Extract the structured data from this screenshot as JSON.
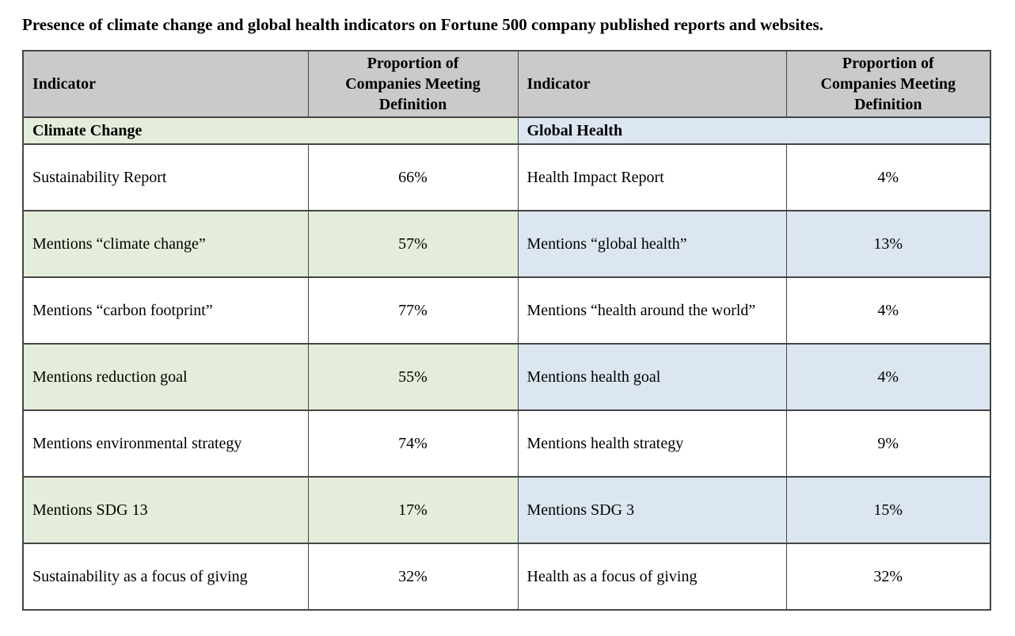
{
  "title": "Presence of climate change and global health indicators on Fortune 500 company published reports and websites.",
  "table": {
    "headers": {
      "indicator_left": "Indicator",
      "proportion_left": "Proportion of\nCompanies Meeting\nDefinition",
      "indicator_right": "Indicator",
      "proportion_right": "Proportion of\nCompanies Meeting\nDefinition"
    },
    "sections": {
      "left": {
        "label": "Climate Change"
      },
      "right": {
        "label": "Global Health"
      }
    },
    "rows": [
      {
        "left": {
          "indicator": "Sustainability Report",
          "value": "66%"
        },
        "right": {
          "indicator": "Health Impact Report",
          "value": "4%"
        }
      },
      {
        "left": {
          "indicator": "Mentions “climate change”",
          "value": "57%"
        },
        "right": {
          "indicator": "Mentions “global health”",
          "value": "13%"
        }
      },
      {
        "left": {
          "indicator": "Mentions “carbon footprint”",
          "value": "77%"
        },
        "right": {
          "indicator": "Mentions “health around the world”",
          "value": "4%"
        }
      },
      {
        "left": {
          "indicator": "Mentions reduction goal",
          "value": "55%"
        },
        "right": {
          "indicator": "Mentions health goal",
          "value": "4%"
        }
      },
      {
        "left": {
          "indicator": "Mentions environmental strategy",
          "value": "74%"
        },
        "right": {
          "indicator": "Mentions health strategy",
          "value": "9%"
        }
      },
      {
        "left": {
          "indicator": "Mentions SDG 13",
          "value": "17%"
        },
        "right": {
          "indicator": "Mentions SDG 3",
          "value": "15%"
        }
      },
      {
        "left": {
          "indicator": "Sustainability as a focus of giving",
          "value": "32%"
        },
        "right": {
          "indicator": "Health as a focus of giving",
          "value": "32%"
        }
      }
    ]
  },
  "colors": {
    "header_bg": "#cbcaca",
    "climate_tint": "#e4edd9",
    "health_tint": "#dce6f1",
    "border": "#454545",
    "text": "#000000"
  }
}
